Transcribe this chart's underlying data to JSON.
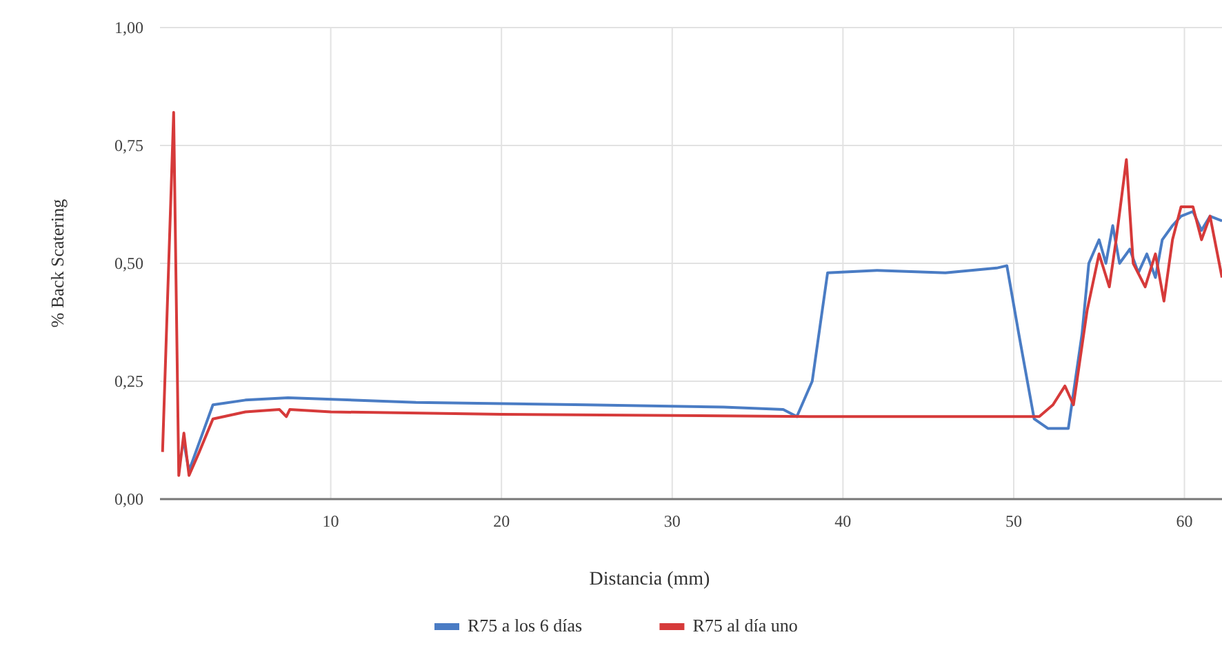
{
  "chart_data": {
    "type": "line",
    "xlabel": "Distancia (mm)",
    "ylabel": "% Back Scatering",
    "xlim": [
      0,
      62.2
    ],
    "ylim": [
      0,
      1
    ],
    "xticks": [
      10,
      20,
      30,
      40,
      50,
      60
    ],
    "yticks": [
      {
        "value": 0,
        "label": "0,00"
      },
      {
        "value": 0.25,
        "label": "0,25"
      },
      {
        "value": 0.5,
        "label": "0,50"
      },
      {
        "value": 0.75,
        "label": "0,75"
      },
      {
        "value": 1,
        "label": "1,00"
      }
    ],
    "grid": true,
    "legend": "bottom",
    "marker": "none",
    "line_style": "solid",
    "series": [
      {
        "name": "R75 a los 6 días",
        "color": "#4a7cc4",
        "x": [
          1.4,
          1.7,
          2.3,
          3.1,
          5,
          7.5,
          15,
          25,
          33,
          36.5,
          37.3,
          38.2,
          39.1,
          42,
          46,
          49,
          49.6,
          50.3,
          51.2,
          52,
          53.2,
          54,
          54.4,
          55,
          55.4,
          55.8,
          56.2,
          56.8,
          57.3,
          57.8,
          58.3,
          58.7,
          59.3,
          59.8,
          60.5,
          61,
          61.5,
          62.2
        ],
        "values": [
          0.12,
          0.06,
          0.12,
          0.2,
          0.21,
          0.215,
          0.205,
          0.2,
          0.195,
          0.19,
          0.175,
          0.25,
          0.48,
          0.485,
          0.48,
          0.49,
          0.495,
          0.35,
          0.17,
          0.15,
          0.15,
          0.35,
          0.5,
          0.55,
          0.5,
          0.58,
          0.5,
          0.53,
          0.48,
          0.52,
          0.47,
          0.55,
          0.58,
          0.6,
          0.61,
          0.57,
          0.6,
          0.59
        ]
      },
      {
        "name": "R75 al día uno",
        "color": "#d63a3a",
        "x": [
          0.15,
          0.8,
          1.1,
          1.4,
          1.7,
          2.3,
          3.1,
          5,
          7,
          7.4,
          7.6,
          10,
          20,
          38,
          50,
          51.5,
          52.3,
          53,
          53.5,
          54.3,
          55,
          55.6,
          56,
          56.6,
          57,
          57.7,
          58.3,
          58.8,
          59.3,
          59.8,
          60.5,
          61,
          61.5,
          62.2
        ],
        "values": [
          0.1,
          0.82,
          0.05,
          0.14,
          0.05,
          0.1,
          0.17,
          0.185,
          0.19,
          0.175,
          0.19,
          0.185,
          0.18,
          0.175,
          0.175,
          0.175,
          0.2,
          0.24,
          0.2,
          0.4,
          0.52,
          0.45,
          0.55,
          0.72,
          0.5,
          0.45,
          0.52,
          0.42,
          0.55,
          0.62,
          0.62,
          0.55,
          0.6,
          0.47
        ]
      }
    ]
  }
}
